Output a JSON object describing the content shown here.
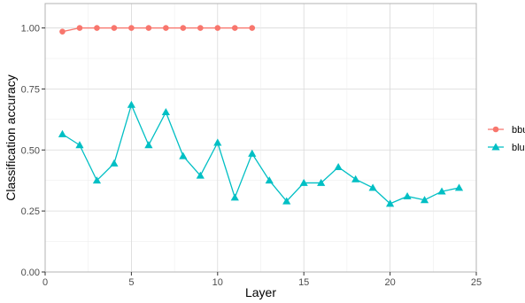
{
  "chart_data": {
    "type": "line",
    "xlabel": "Layer",
    "ylabel": "Classification accuracy",
    "xlim": [
      0,
      25
    ],
    "ylim": [
      0,
      1.1
    ],
    "x_ticks": [
      0,
      5,
      10,
      15,
      20,
      25
    ],
    "x_tick_labels": [
      "0",
      "5",
      "10",
      "15",
      "20",
      "25"
    ],
    "y_ticks": [
      0,
      0.25,
      0.5,
      0.75,
      1.0
    ],
    "y_tick_labels": [
      "0.00",
      "0.25",
      "0.50",
      "0.75",
      "1.00"
    ],
    "grid": true,
    "legend_position": "right",
    "series": [
      {
        "name": "bbu",
        "color": "#F8766D",
        "marker": "circle",
        "x": [
          1,
          2,
          3,
          4,
          5,
          6,
          7,
          8,
          9,
          10,
          11,
          12
        ],
        "values": [
          0.985,
          1.0,
          1.0,
          1.0,
          1.0,
          1.0,
          1.0,
          1.0,
          1.0,
          1.0,
          1.0,
          1.0
        ]
      },
      {
        "name": "blu",
        "color": "#00BFC4",
        "marker": "triangle",
        "x": [
          1,
          2,
          3,
          4,
          5,
          6,
          7,
          8,
          9,
          10,
          11,
          12,
          13,
          14,
          15,
          16,
          17,
          18,
          19,
          20,
          21,
          22,
          23,
          24
        ],
        "values": [
          0.565,
          0.52,
          0.375,
          0.445,
          0.685,
          0.52,
          0.655,
          0.475,
          0.395,
          0.53,
          0.305,
          0.485,
          0.375,
          0.29,
          0.365,
          0.365,
          0.43,
          0.38,
          0.345,
          0.28,
          0.31,
          0.295,
          0.33,
          0.345
        ]
      }
    ]
  }
}
